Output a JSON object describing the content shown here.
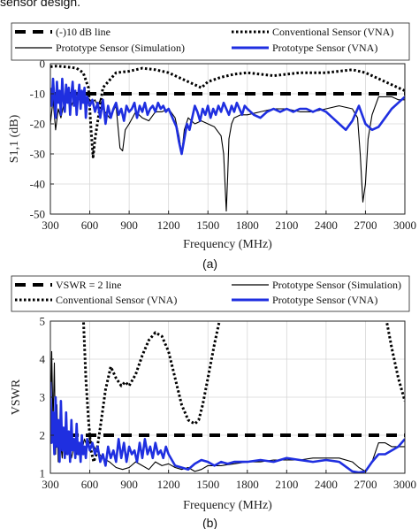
{
  "caption": "sensor design.",
  "chart_data": [
    {
      "type": "line",
      "panel_label": "(a)",
      "xlabel": "Frequency (MHz)",
      "ylabel": "S1,1 (dB)",
      "xlim": [
        300,
        3000
      ],
      "ylim": [
        -50,
        0
      ],
      "xticks": [
        300,
        600,
        900,
        1200,
        1500,
        1800,
        2100,
        2400,
        2700,
        3000
      ],
      "yticks": [
        0,
        -10,
        -20,
        -30,
        -40,
        -50
      ],
      "grid": true,
      "legend_position": "top",
      "series": [
        {
          "name": "(-)10 dB line",
          "color": "#000000",
          "style": "dashed",
          "x": [
            300,
            3000
          ],
          "y": [
            -10,
            -10
          ]
        },
        {
          "name": "Conventional Sensor (VNA)",
          "color": "#000000",
          "style": "dotted",
          "x": [
            300,
            350,
            400,
            450,
            500,
            550,
            590,
            610,
            625,
            640,
            700,
            800,
            900,
            1000,
            1100,
            1200,
            1300,
            1400,
            1450,
            1500,
            1600,
            1700,
            1800,
            1900,
            2000,
            2100,
            2200,
            2300,
            2400,
            2500,
            2600,
            2700,
            2800,
            2850,
            2900,
            2950,
            3000
          ],
          "y": [
            -1,
            -0.8,
            -1,
            -1.2,
            -1.5,
            -3,
            -8,
            -22,
            -31,
            -25,
            -8,
            -3,
            -2.5,
            -1.5,
            -2,
            -3,
            -5,
            -7,
            -8,
            -6,
            -4.5,
            -3.5,
            -3,
            -3.5,
            -4,
            -3.5,
            -3,
            -3,
            -3,
            -2.5,
            -2,
            -3,
            -5,
            -6,
            -7,
            -8,
            -9
          ]
        },
        {
          "name": "Prototype Sensor (Simulation)",
          "color": "#000000",
          "style": "solid",
          "x": [
            300,
            320,
            340,
            360,
            380,
            400,
            420,
            440,
            460,
            480,
            500,
            520,
            540,
            560,
            580,
            600,
            620,
            640,
            660,
            680,
            700,
            750,
            800,
            830,
            850,
            870,
            900,
            950,
            1000,
            1050,
            1100,
            1150,
            1200,
            1250,
            1280,
            1300,
            1320,
            1350,
            1400,
            1450,
            1500,
            1550,
            1600,
            1620,
            1640,
            1650,
            1660,
            1680,
            1700,
            1750,
            1800,
            1900,
            2000,
            2100,
            2200,
            2300,
            2400,
            2500,
            2600,
            2640,
            2660,
            2680,
            2700,
            2720,
            2750,
            2800,
            2850,
            2900,
            2950,
            3000
          ],
          "y": [
            -20,
            -12,
            -22,
            -15,
            -18,
            -14,
            -13,
            -12,
            -14,
            -12,
            -11,
            -12,
            -11,
            -12,
            -11,
            -12,
            -13,
            -12,
            -14,
            -12,
            -15,
            -18,
            -14,
            -28,
            -29,
            -22,
            -20,
            -16,
            -18,
            -19,
            -16,
            -16,
            -15,
            -18,
            -24,
            -30,
            -22,
            -18,
            -20,
            -19,
            -20,
            -21,
            -24,
            -30,
            -49,
            -38,
            -25,
            -20,
            -18,
            -17,
            -17,
            -16,
            -15,
            -15,
            -16,
            -16,
            -15,
            -14,
            -15,
            -18,
            -30,
            -46,
            -40,
            -25,
            -17,
            -11,
            -11,
            -11,
            -12,
            -12
          ]
        },
        {
          "name": "Prototype Sensor (VNA)",
          "color": "#1f2fe0",
          "style": "solid",
          "x": [
            300,
            310,
            320,
            330,
            340,
            350,
            360,
            370,
            380,
            390,
            400,
            410,
            420,
            430,
            440,
            450,
            460,
            470,
            480,
            490,
            500,
            510,
            520,
            530,
            540,
            550,
            560,
            570,
            580,
            600,
            620,
            640,
            660,
            680,
            700,
            720,
            740,
            760,
            780,
            800,
            820,
            840,
            860,
            880,
            900,
            920,
            940,
            960,
            980,
            1000,
            1020,
            1040,
            1060,
            1080,
            1100,
            1120,
            1140,
            1160,
            1180,
            1200,
            1220,
            1240,
            1260,
            1280,
            1300,
            1320,
            1340,
            1360,
            1380,
            1400,
            1420,
            1440,
            1460,
            1480,
            1500,
            1520,
            1540,
            1560,
            1580,
            1600,
            1620,
            1640,
            1660,
            1680,
            1700,
            1720,
            1740,
            1760,
            1780,
            1800,
            1850,
            1900,
            1950,
            2000,
            2050,
            2100,
            2150,
            2200,
            2250,
            2300,
            2350,
            2400,
            2450,
            2500,
            2550,
            2600,
            2650,
            2700,
            2750,
            2800,
            2850,
            2900,
            2950,
            3000
          ],
          "y": [
            -8,
            -14,
            -5,
            -12,
            -18,
            -6,
            -13,
            -9,
            -17,
            -5,
            -12,
            -16,
            -7,
            -13,
            -8,
            -17,
            -10,
            -6,
            -14,
            -9,
            -17,
            -11,
            -7,
            -15,
            -9,
            -13,
            -8,
            -18,
            -11,
            -14,
            -12,
            -16,
            -13,
            -18,
            -12,
            -20,
            -14,
            -18,
            -15,
            -13,
            -17,
            -15,
            -19,
            -14,
            -16,
            -15,
            -13,
            -18,
            -14,
            -16,
            -13,
            -17,
            -15,
            -14,
            -16,
            -13,
            -15,
            -14,
            -16,
            -15,
            -17,
            -19,
            -21,
            -26,
            -30,
            -25,
            -20,
            -22,
            -18,
            -14,
            -16,
            -19,
            -15,
            -17,
            -14,
            -18,
            -15,
            -17,
            -14,
            -16,
            -13,
            -15,
            -17,
            -14,
            -16,
            -13,
            -15,
            -17,
            -14,
            -15,
            -17,
            -18,
            -16,
            -15,
            -16,
            -15,
            -16,
            -15,
            -15,
            -16,
            -15,
            -16,
            -18,
            -20,
            -22,
            -19,
            -14,
            -20,
            -22,
            -21,
            -18,
            -15,
            -13,
            -11
          ]
        }
      ]
    },
    {
      "type": "line",
      "panel_label": "(b)",
      "xlabel": "Frequency (MHz)",
      "ylabel": "VSWR",
      "xlim": [
        300,
        3000
      ],
      "ylim": [
        1,
        5
      ],
      "xticks": [
        300,
        600,
        900,
        1200,
        1500,
        1800,
        2100,
        2400,
        2700,
        3000
      ],
      "yticks": [
        5,
        4,
        3,
        2,
        1
      ],
      "grid": true,
      "legend_position": "top",
      "series": [
        {
          "name": "VSWR = 2 line",
          "color": "#000000",
          "style": "dashed",
          "x": [
            300,
            3000
          ],
          "y": [
            2,
            2
          ]
        },
        {
          "name": "Conventional Sensor (VNA)",
          "color": "#000000",
          "style": "dotted",
          "x": [
            550,
            570,
            590,
            610,
            630,
            650,
            680,
            720,
            760,
            800,
            840,
            870,
            900,
            950,
            1000,
            1050,
            1100,
            1150,
            1200,
            1250,
            1300,
            1350,
            1400,
            1430,
            1460,
            1500,
            1550,
            1600,
            1650,
            1700,
            1750,
            2800,
            2850,
            2900,
            2950,
            3000
          ],
          "y": [
            5.2,
            3.5,
            2.4,
            1.6,
            1.3,
            1.5,
            2.2,
            3.2,
            3.8,
            3.5,
            3.3,
            3.4,
            3.3,
            3.6,
            4.1,
            4.5,
            4.7,
            4.6,
            4.2,
            3.5,
            2.8,
            2.4,
            2.3,
            2.4,
            2.8,
            3.5,
            4.4,
            5.2,
            5.5,
            5.5,
            5.5,
            5.5,
            5.2,
            4.3,
            3.5,
            2.9
          ]
        },
        {
          "name": "Prototype Sensor (Simulation)",
          "color": "#000000",
          "style": "solid",
          "x": [
            300,
            310,
            320,
            330,
            340,
            350,
            360,
            370,
            380,
            390,
            400,
            420,
            440,
            460,
            480,
            500,
            520,
            540,
            560,
            580,
            600,
            650,
            700,
            750,
            800,
            850,
            900,
            950,
            1000,
            1050,
            1100,
            1150,
            1200,
            1250,
            1300,
            1350,
            1400,
            1450,
            1500,
            1600,
            1700,
            1800,
            1900,
            2000,
            2100,
            2200,
            2300,
            2400,
            2500,
            2600,
            2650,
            2700,
            2750,
            2800,
            2850,
            2900,
            2950,
            3000
          ],
          "y": [
            1.9,
            4.2,
            2.3,
            3.9,
            1.5,
            2.8,
            1.3,
            2.2,
            1.7,
            1.4,
            2.0,
            1.5,
            1.8,
            1.4,
            1.7,
            1.5,
            1.8,
            1.6,
            1.9,
            1.7,
            1.9,
            1.6,
            1.4,
            1.3,
            1.15,
            1.1,
            1.15,
            1.3,
            1.2,
            1.1,
            1.3,
            1.2,
            1.25,
            1.15,
            1.1,
            1.15,
            1.05,
            1.1,
            1.2,
            1.2,
            1.25,
            1.3,
            1.3,
            1.35,
            1.35,
            1.35,
            1.4,
            1.4,
            1.4,
            1.3,
            1.15,
            1.05,
            1.3,
            1.8,
            1.8,
            1.7,
            1.7,
            1.7
          ]
        },
        {
          "name": "Prototype Sensor (VNA)",
          "color": "#1f2fe0",
          "style": "solid",
          "x": [
            300,
            310,
            320,
            330,
            340,
            350,
            360,
            370,
            380,
            390,
            400,
            410,
            420,
            430,
            440,
            450,
            460,
            470,
            480,
            490,
            500,
            510,
            520,
            530,
            540,
            550,
            560,
            570,
            580,
            600,
            620,
            640,
            660,
            680,
            700,
            720,
            740,
            760,
            780,
            800,
            820,
            840,
            860,
            880,
            900,
            920,
            940,
            960,
            980,
            1000,
            1020,
            1040,
            1060,
            1080,
            1100,
            1120,
            1140,
            1160,
            1180,
            1200,
            1250,
            1300,
            1350,
            1400,
            1450,
            1500,
            1550,
            1600,
            1650,
            1700,
            1800,
            1900,
            2000,
            2100,
            2200,
            2300,
            2400,
            2500,
            2600,
            2650,
            2700,
            2750,
            2800,
            2850,
            2900,
            2950,
            3000
          ],
          "y": [
            3.4,
            1.8,
            2.6,
            1.5,
            3.0,
            1.7,
            2.4,
            1.3,
            2.9,
            1.6,
            2.2,
            1.4,
            2.6,
            1.5,
            2.1,
            1.3,
            2.4,
            1.6,
            1.9,
            1.4,
            2.3,
            1.5,
            1.8,
            1.3,
            2.0,
            1.5,
            1.7,
            1.4,
            1.9,
            1.6,
            1.8,
            1.5,
            1.7,
            1.3,
            1.5,
            1.2,
            1.7,
            1.4,
            1.6,
            1.3,
            1.9,
            1.4,
            1.8,
            1.3,
            1.7,
            1.5,
            1.6,
            1.3,
            1.8,
            1.4,
            1.9,
            1.5,
            1.7,
            1.4,
            1.8,
            1.5,
            1.6,
            1.4,
            1.7,
            1.5,
            1.2,
            1.15,
            1.1,
            1.25,
            1.35,
            1.3,
            1.2,
            1.3,
            1.25,
            1.3,
            1.3,
            1.35,
            1.3,
            1.4,
            1.35,
            1.3,
            1.35,
            1.3,
            1.05,
            1.02,
            1.05,
            1.3,
            1.5,
            1.5,
            1.6,
            1.7,
            1.9
          ]
        }
      ]
    }
  ]
}
